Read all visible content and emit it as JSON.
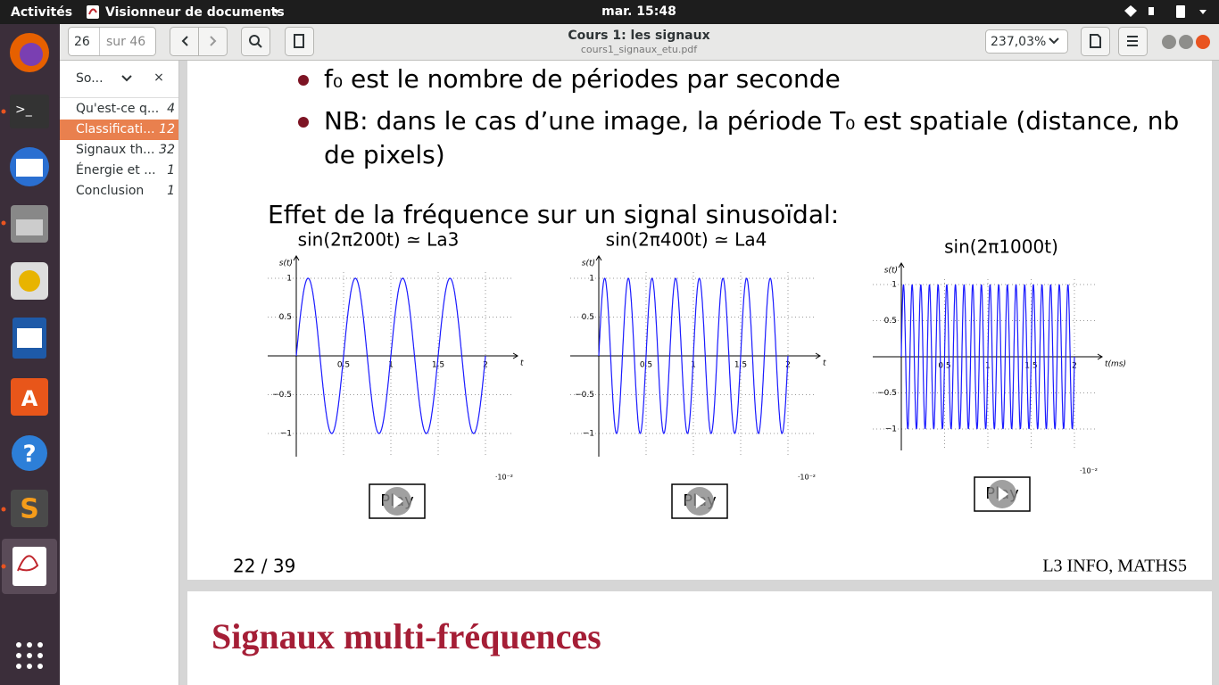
{
  "topbar": {
    "activities": "Activités",
    "app": "Visionneur de documents",
    "clock": "mar. 15:48"
  },
  "toolbar": {
    "page": "26",
    "of": "sur 46",
    "title": "Cours 1: les signaux",
    "file": "cours1_signaux_etu.pdf",
    "zoom": "237,03%"
  },
  "sidebar": {
    "selector": "So...",
    "close": "×",
    "items": [
      {
        "label": "Qu'est-ce q...",
        "page": "4"
      },
      {
        "label": "Classificati...",
        "page": "12"
      },
      {
        "label": "Signaux th...",
        "page": "32"
      },
      {
        "label": "Énergie et ...",
        "page": "1"
      },
      {
        "label": "Conclusion",
        "page": "1"
      }
    ]
  },
  "slide": {
    "bullets": [
      "f₀ est le nombre de périodes par seconde",
      "NB: dans le cas d’une image, la période T₀ est spatiale (distance, nb",
      "de pixels)"
    ],
    "heading": "Effet de la fréquence sur un signal sinusoïdal:",
    "plots": [
      {
        "title": "sin(2π200t) ≃ La3",
        "ylabel": "s(t)",
        "xlabel": "t",
        "xticks": [
          0.5,
          1,
          1.5,
          2
        ],
        "yticks": [
          1,
          0.5,
          {
            "value": -0.5,
            "label": "−0.5"
          },
          {
            "value": -1,
            "label": "−1"
          }
        ],
        "scale": "·10⁻²",
        "button": "Play"
      },
      {
        "title": "sin(2π400t) ≃ La4",
        "ylabel": "s(t)",
        "xlabel": "t",
        "xticks": [
          0.5,
          1,
          1.5,
          2
        ],
        "yticks": [
          1,
          0.5,
          {
            "value": -0.5,
            "label": "−0.5"
          },
          {
            "value": -1,
            "label": "−1"
          }
        ],
        "scale": "·10⁻²",
        "button": "Play"
      },
      {
        "title": "sin(2π1000t)",
        "ylabel": "s(t)",
        "xlabel": "t(ms)",
        "xticks": [
          0.5,
          1,
          1.5,
          2
        ],
        "yticks": [
          1,
          0.5,
          {
            "value": -0.5,
            "label": "−0.5"
          },
          {
            "value": -1,
            "label": "−1"
          }
        ],
        "scale": "·10⁻²",
        "button": "Play"
      }
    ],
    "footer_left": "22 / 39",
    "footer_right": "L3 INFO, MATHS5"
  },
  "next_slide": {
    "title": "Signaux multi-fréquences"
  }
}
